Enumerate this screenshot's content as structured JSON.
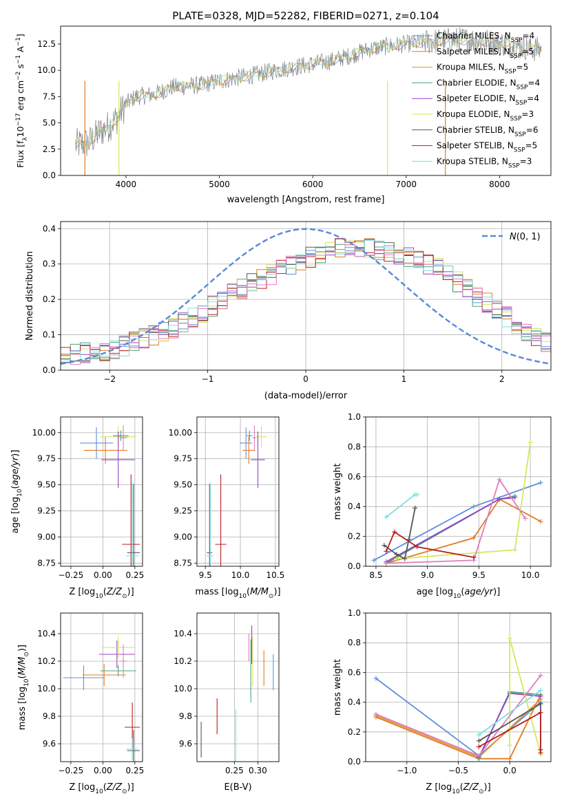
{
  "title": "PLATE=0328, MJD=52282, FIBERID=0271, z=0.104",
  "colors": {
    "Chabrier MILES": "#5f8fd9",
    "Salpeter MILES": "#e07b24",
    "Kroupa MILES": "#e0952b",
    "Chabrier ELODIE": "#4aa37c",
    "Salpeter ELODIE": "#9b3fc6",
    "Kroupa ELODIE": "#d6e65a",
    "Chabrier STELIB": "#555555",
    "Salpeter STELIB": "#b81c1c",
    "Kroupa STELIB": "#7fdde0",
    "pink": "#e07cc0",
    "normal": "#5b8bd8"
  },
  "chart_data": [
    {
      "id": "spectrum",
      "type": "line",
      "title": "PLATE=0328, MJD=52282, FIBERID=0271, z=0.104",
      "xlabel": "wavelength [Angstrom, rest frame]",
      "ylabel": "Flux [f_λ 10^-17 erg cm^-2 s^-1 A^-1]",
      "xlim": [
        3300,
        8550
      ],
      "ylim": [
        0,
        14.2
      ],
      "xticks": [
        4000,
        5000,
        6000,
        7000,
        8000
      ],
      "yticks": [
        0.0,
        2.5,
        5.0,
        7.5,
        10.0,
        12.5
      ],
      "grid": false,
      "legend_position": "right",
      "continuum": {
        "x": [
          3450,
          3600,
          3700,
          3800,
          3900,
          4000,
          4100,
          4300,
          4500,
          4800,
          5000,
          5200,
          5400,
          5600,
          5800,
          6000,
          6200,
          6400,
          6600,
          6800,
          7000,
          7200,
          7400,
          7600,
          7800,
          8000,
          8200,
          8400
        ],
        "y": [
          2.9,
          3.1,
          4.0,
          4.6,
          5.4,
          6.8,
          7.5,
          7.7,
          8.4,
          8.6,
          9.0,
          9.3,
          9.6,
          10.0,
          10.3,
          10.6,
          10.9,
          11.4,
          12.0,
          12.3,
          12.5,
          12.7,
          12.8,
          12.9,
          12.8,
          12.6,
          12.3,
          12.0
        ]
      },
      "series": [
        {
          "name": "Chabrier MILES",
          "nssp": "4"
        },
        {
          "name": "Salpeter MILES",
          "nssp": "5"
        },
        {
          "name": "Kroupa MILES",
          "nssp": "5"
        },
        {
          "name": "Chabrier ELODIE",
          "nssp": "4"
        },
        {
          "name": "Salpeter ELODIE",
          "nssp": "4"
        },
        {
          "name": "Kroupa ELODIE",
          "nssp": "3"
        },
        {
          "name": "Chabrier STELIB",
          "nssp": "6"
        },
        {
          "name": "Salpeter STELIB",
          "nssp": "5"
        },
        {
          "name": "Kroupa STELIB",
          "nssp": "3"
        }
      ]
    },
    {
      "id": "residuals",
      "type": "line",
      "xlabel": "(data-model)/error",
      "ylabel": "Normed distribution",
      "xlim": [
        -2.5,
        2.5
      ],
      "ylim": [
        0,
        0.42
      ],
      "xticks": [
        -2,
        -1,
        0,
        1,
        2
      ],
      "yticks": [
        0.0,
        0.1,
        0.2,
        0.3,
        0.4
      ],
      "grid": true,
      "legend": "N(0,1)",
      "legend_position": "top-right",
      "bin_width": 0.1,
      "base_histogram": [
        0.04,
        0.045,
        0.05,
        0.05,
        0.055,
        0.06,
        0.07,
        0.08,
        0.09,
        0.1,
        0.11,
        0.12,
        0.135,
        0.15,
        0.165,
        0.18,
        0.2,
        0.215,
        0.23,
        0.245,
        0.26,
        0.27,
        0.285,
        0.3,
        0.31,
        0.32,
        0.33,
        0.34,
        0.345,
        0.35,
        0.35,
        0.345,
        0.34,
        0.335,
        0.33,
        0.32,
        0.31,
        0.3,
        0.29,
        0.27,
        0.25,
        0.23,
        0.21,
        0.19,
        0.17,
        0.15,
        0.13,
        0.11,
        0.095,
        0.08,
        0.07
      ]
    },
    {
      "id": "age-vs-Z",
      "type": "scatter",
      "xlabel": "Z [log10(Z/Z⊙)]",
      "ylabel": "age [log10(age/yr)]",
      "xlim": [
        -0.33,
        0.31
      ],
      "ylim": [
        8.72,
        10.15
      ],
      "xticks": [
        -0.25,
        0.0,
        0.25
      ],
      "yticks": [
        8.75,
        9.0,
        9.25,
        9.5,
        9.75,
        10.0
      ],
      "grid": true,
      "points": [
        {
          "series": "Chabrier MILES",
          "x": -0.05,
          "xerr": 0.13,
          "y": 9.9,
          "yerr": 0.15
        },
        {
          "series": "Salpeter MILES",
          "x": 0.02,
          "xerr": 0.17,
          "y": 9.83,
          "yerr": 0.13
        },
        {
          "series": "Kroupa ELODIE",
          "x": 0.12,
          "xerr": 0.14,
          "y": 9.96,
          "yerr": 0.1
        },
        {
          "series": "Salpeter ELODIE",
          "x": 0.12,
          "xerr": 0.13,
          "y": 9.74,
          "yerr": 0.27
        },
        {
          "series": "Chabrier ELODIE",
          "x": 0.14,
          "xerr": 0.06,
          "y": 9.97,
          "yerr": 0.05
        },
        {
          "series": "pink",
          "x": 0.16,
          "xerr": 0.03,
          "y": 9.95,
          "yerr": 0.12
        },
        {
          "series": "Chabrier STELIB",
          "x": 0.24,
          "xerr": 0.05,
          "y": 8.85,
          "yerr": 0.66
        },
        {
          "series": "Salpeter STELIB",
          "x": 0.22,
          "xerr": 0.07,
          "y": 8.93,
          "yerr": 0.67
        },
        {
          "series": "Kroupa STELIB",
          "x": 0.23,
          "xerr": 0.05,
          "y": 8.82,
          "yerr": 0.7
        }
      ]
    },
    {
      "id": "age-vs-mass",
      "type": "scatter",
      "xlabel": "mass [log10(M/M⊙)]",
      "xlim": [
        9.38,
        10.55
      ],
      "ylim": [
        8.72,
        10.15
      ],
      "xticks": [
        9.5,
        10.0,
        10.5
      ],
      "yticks": [
        8.75,
        9.0,
        9.25,
        9.5,
        9.75,
        10.0
      ],
      "grid": true,
      "points": [
        {
          "series": "Chabrier MILES",
          "x": 10.08,
          "xerr": 0.09,
          "y": 9.9,
          "yerr": 0.15
        },
        {
          "series": "Salpeter MILES",
          "x": 10.12,
          "xerr": 0.09,
          "y": 9.83,
          "yerr": 0.13
        },
        {
          "series": "Kroupa ELODIE",
          "x": 10.3,
          "xerr": 0.08,
          "y": 9.96,
          "yerr": 0.1
        },
        {
          "series": "Salpeter ELODIE",
          "x": 10.25,
          "xerr": 0.1,
          "y": 9.74,
          "yerr": 0.27
        },
        {
          "series": "Chabrier ELODIE",
          "x": 10.13,
          "xerr": 0.04,
          "y": 9.97,
          "yerr": 0.05
        },
        {
          "series": "pink",
          "x": 10.2,
          "xerr": 0.03,
          "y": 9.95,
          "yerr": 0.12
        },
        {
          "series": "Chabrier STELIB",
          "x": 9.56,
          "xerr": 0.04,
          "y": 8.85,
          "yerr": 0.66
        },
        {
          "series": "Salpeter STELIB",
          "x": 9.72,
          "xerr": 0.08,
          "y": 8.93,
          "yerr": 0.67
        },
        {
          "series": "Kroupa STELIB",
          "x": 9.57,
          "xerr": 0.05,
          "y": 8.82,
          "yerr": 0.7
        }
      ]
    },
    {
      "id": "weight-vs-age",
      "type": "line",
      "xlabel": "age  [log10(age/yr)]",
      "ylabel": "mass weight",
      "xlim": [
        8.4,
        10.2
      ],
      "ylim": [
        0,
        1
      ],
      "xticks": [
        8.5,
        9.0,
        9.5,
        10.0
      ],
      "yticks": [
        0.0,
        0.2,
        0.4,
        0.6,
        0.8,
        1.0
      ],
      "grid": true,
      "series": [
        {
          "name": "Chabrier MILES",
          "x": [
            8.48,
            9.45,
            10.1
          ],
          "y": [
            0.04,
            0.4,
            0.56
          ]
        },
        {
          "name": "Salpeter MILES",
          "x": [
            8.6,
            9.45,
            9.7,
            10.1
          ],
          "y": [
            0.02,
            0.19,
            0.45,
            0.3
          ]
        },
        {
          "name": "Chabrier ELODIE",
          "x": [
            8.6,
            9.7,
            9.85
          ],
          "y": [
            0.02,
            0.45,
            0.47
          ]
        },
        {
          "name": "Salpeter ELODIE",
          "x": [
            8.6,
            9.7,
            9.85
          ],
          "y": [
            0.03,
            0.45,
            0.46
          ]
        },
        {
          "name": "Kroupa ELODIE",
          "x": [
            8.7,
            9.85,
            10.0
          ],
          "y": [
            0.05,
            0.11,
            0.83
          ]
        },
        {
          "name": "pink",
          "x": [
            8.6,
            9.45,
            9.7,
            9.95
          ],
          "y": [
            0.02,
            0.04,
            0.58,
            0.32
          ]
        },
        {
          "name": "Chabrier STELIB",
          "x": [
            8.58,
            8.7,
            8.78,
            8.82,
            8.88
          ],
          "y": [
            0.14,
            0.08,
            0.05,
            0.18,
            0.39
          ]
        },
        {
          "name": "Salpeter STELIB",
          "x": [
            8.6,
            8.68,
            8.9,
            9.45
          ],
          "y": [
            0.1,
            0.23,
            0.13,
            0.06
          ]
        },
        {
          "name": "Kroupa STELIB",
          "x": [
            8.6,
            8.88,
            8.9
          ],
          "y": [
            0.33,
            0.48,
            0.48
          ]
        }
      ]
    },
    {
      "id": "mass-vs-Z",
      "type": "scatter",
      "xlabel": "Z [log10(Z/Z⊙)]",
      "ylabel": "mass [log10(M/M⊙)]",
      "xlim": [
        -0.33,
        0.31
      ],
      "ylim": [
        9.47,
        10.55
      ],
      "xticks": [
        -0.25,
        0.0,
        0.25
      ],
      "yticks": [
        9.6,
        9.8,
        10.0,
        10.2,
        10.4
      ],
      "grid": true,
      "points": [
        {
          "series": "Chabrier MILES",
          "x": -0.15,
          "xerr": 0.16,
          "y": 10.08,
          "yerr": 0.09
        },
        {
          "series": "Salpeter MILES",
          "x": 0.01,
          "xerr": 0.17,
          "y": 10.1,
          "yerr": 0.08
        },
        {
          "series": "Chabrier ELODIE",
          "x": 0.12,
          "xerr": 0.14,
          "y": 10.13,
          "yerr": 0.04
        },
        {
          "series": "Salpeter ELODIE",
          "x": 0.11,
          "xerr": 0.14,
          "y": 10.25,
          "yerr": 0.1
        },
        {
          "series": "Kroupa ELODIE",
          "x": 0.12,
          "xerr": 0.13,
          "y": 10.3,
          "yerr": 0.08
        },
        {
          "series": "pink",
          "x": 0.16,
          "xerr": 0.03,
          "y": 10.2,
          "yerr": 0.12
        },
        {
          "series": "Chabrier STELIB",
          "x": 0.24,
          "xerr": 0.05,
          "y": 9.55,
          "yerr": 0.15
        },
        {
          "series": "Salpeter STELIB",
          "x": 0.23,
          "xerr": 0.06,
          "y": 9.72,
          "yerr": 0.18
        },
        {
          "series": "Kroupa STELIB",
          "x": 0.23,
          "xerr": 0.05,
          "y": 9.56,
          "yerr": 0.08
        }
      ]
    },
    {
      "id": "mass-vs-EBV",
      "type": "scatter",
      "xlabel": "E(B-V)",
      "xlim": [
        0.17,
        0.345
      ],
      "ylim": [
        9.47,
        10.55
      ],
      "xticks": [
        0.25,
        0.3
      ],
      "yticks": [
        9.6,
        9.8,
        10.0,
        10.2,
        10.4
      ],
      "grid": true,
      "points": [
        {
          "series": "Chabrier MILES",
          "x": 0.333,
          "xerr": 0.0,
          "y": 10.12,
          "yerr": 0.13
        },
        {
          "series": "Salpeter MILES",
          "x": 0.313,
          "xerr": 0.0,
          "y": 10.15,
          "yerr": 0.13
        },
        {
          "series": "Chabrier ELODIE",
          "x": 0.285,
          "xerr": 0.0,
          "y": 10.13,
          "yerr": 0.23
        },
        {
          "series": "Salpeter ELODIE",
          "x": 0.287,
          "xerr": 0.0,
          "y": 10.32,
          "yerr": 0.14
        },
        {
          "series": "Kroupa ELODIE",
          "x": 0.289,
          "xerr": 0.0,
          "y": 10.2,
          "yerr": 0.18
        },
        {
          "series": "pink",
          "x": 0.281,
          "xerr": 0.0,
          "y": 10.3,
          "yerr": 0.1
        },
        {
          "series": "Chabrier STELIB",
          "x": 0.179,
          "xerr": 0.0,
          "y": 9.63,
          "yerr": 0.13
        },
        {
          "series": "Salpeter STELIB",
          "x": 0.213,
          "xerr": 0.0,
          "y": 9.8,
          "yerr": 0.13
        },
        {
          "series": "Kroupa STELIB",
          "x": 0.253,
          "xerr": 0.0,
          "y": 9.65,
          "yerr": 0.2
        }
      ]
    },
    {
      "id": "weight-vs-Z",
      "type": "line",
      "xlabel": "Z [log10(Z/Z⊙)]",
      "ylabel": "mass weight",
      "xlim": [
        -1.4,
        0.4
      ],
      "ylim": [
        0,
        1
      ],
      "xticks": [
        -1.0,
        -0.5,
        0.0
      ],
      "yticks": [
        0.0,
        0.2,
        0.4,
        0.6,
        0.8,
        1.0
      ],
      "grid": true,
      "series": [
        {
          "name": "Chabrier MILES",
          "x": [
            -1.3,
            -0.3,
            0.3
          ],
          "y": [
            0.56,
            0.04,
            0.4
          ]
        },
        {
          "name": "Salpeter MILES",
          "x": [
            -1.3,
            -0.3,
            0.0,
            0.3
          ],
          "y": [
            0.3,
            0.02,
            0.02,
            0.45
          ]
        },
        {
          "name": "Kroupa MILES",
          "x": [
            -1.3,
            -0.3,
            0.3
          ],
          "y": [
            0.31,
            0.03,
            0.42
          ]
        },
        {
          "name": "Chabrier ELODIE",
          "x": [
            -0.3,
            0.0,
            0.3
          ],
          "y": [
            0.02,
            0.47,
            0.45
          ]
        },
        {
          "name": "Salpeter ELODIE",
          "x": [
            -0.3,
            0.0,
            0.3
          ],
          "y": [
            0.03,
            0.46,
            0.44
          ]
        },
        {
          "name": "Kroupa ELODIE",
          "x": [
            0.0,
            0.0,
            0.3
          ],
          "y": [
            0.11,
            0.83,
            0.05
          ]
        },
        {
          "name": "pink",
          "x": [
            -1.3,
            -0.3,
            0.3
          ],
          "y": [
            0.32,
            0.04,
            0.58
          ]
        },
        {
          "name": "Chabrier STELIB",
          "x": [
            -0.3,
            0.3,
            0.3
          ],
          "y": [
            0.14,
            0.39,
            0.08
          ]
        },
        {
          "name": "Salpeter STELIB",
          "x": [
            -0.3,
            0.3,
            0.3
          ],
          "y": [
            0.1,
            0.33,
            0.06
          ]
        },
        {
          "name": "Kroupa STELIB",
          "x": [
            -0.3,
            0.3
          ],
          "y": [
            0.18,
            0.48
          ]
        }
      ]
    }
  ]
}
